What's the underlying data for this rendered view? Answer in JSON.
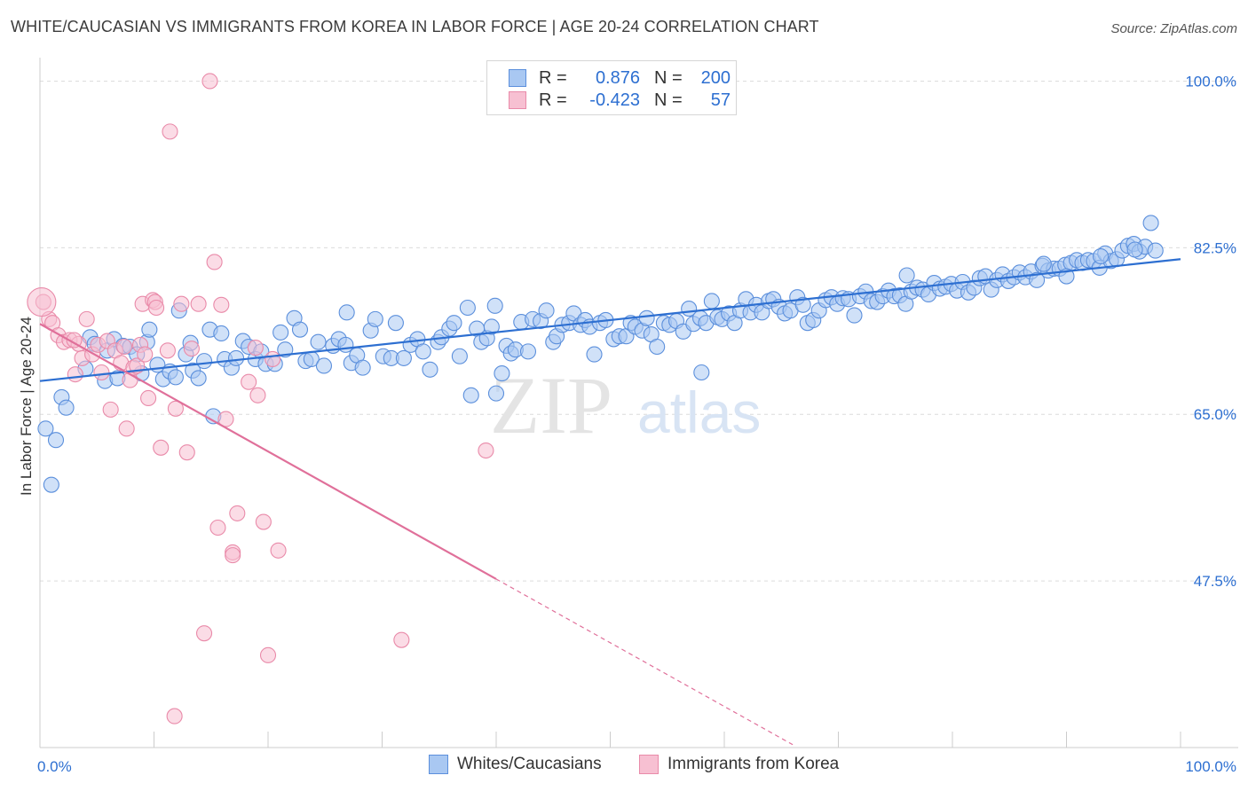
{
  "title": "WHITE/CAUCASIAN VS IMMIGRANTS FROM KOREA IN LABOR FORCE | AGE 20-24 CORRELATION CHART",
  "source": "Source: ZipAtlas.com",
  "watermark": {
    "zip": "ZIP",
    "atlas": "atlas"
  },
  "colors": {
    "blue_fill": "#a9c8f2",
    "blue_stroke": "#5b8fdc",
    "blue_line": "#2d6fd1",
    "pink_fill": "#f7c0d2",
    "pink_stroke": "#e98aa9",
    "pink_line": "#e0709a",
    "grid": "#dcdcdc",
    "axis_label": "#2d6fd1"
  },
  "legend": {
    "rows": [
      {
        "r_label": "R =",
        "r_value": "0.876",
        "n_label": "N =",
        "n_value": "200"
      },
      {
        "r_label": "R =",
        "r_value": "-0.423",
        "n_label": "N =",
        "n_value": "57"
      }
    ]
  },
  "chart_data": {
    "type": "scatter",
    "title": "WHITE/CAUCASIAN VS IMMIGRANTS FROM KOREA IN LABOR FORCE | AGE 20-24 CORRELATION CHART",
    "xlabel": "",
    "ylabel": "In Labor Force | Age 20-24",
    "xlim": [
      0,
      100
    ],
    "ylim": [
      30,
      102
    ],
    "x_tick_labels": [
      "0.0%",
      "100.0%"
    ],
    "y_ticks": [
      47.5,
      65.0,
      82.5,
      100.0
    ],
    "y_tick_labels": [
      "47.5%",
      "65.0%",
      "82.5%",
      "100.0%"
    ],
    "grid": true,
    "legend_position": "top-center",
    "series": [
      {
        "name": "Whites/Caucasians",
        "trend": {
          "x": [
            0,
            100
          ],
          "y": [
            68.5,
            81.3
          ]
        },
        "points": [
          [
            0.5,
            63.5
          ],
          [
            1.4,
            62.3
          ],
          [
            1.0,
            57.6
          ],
          [
            1.9,
            66.8
          ],
          [
            2.3,
            65.7
          ],
          [
            4.0,
            69.8
          ],
          [
            4.4,
            73.1
          ],
          [
            4.8,
            72.4
          ],
          [
            5.7,
            68.5
          ],
          [
            5.9,
            71.7
          ],
          [
            6.5,
            72.9
          ],
          [
            6.8,
            68.8
          ],
          [
            7.3,
            72.2
          ],
          [
            7.9,
            72.1
          ],
          [
            8.5,
            71.3
          ],
          [
            8.9,
            69.3
          ],
          [
            9.4,
            72.6
          ],
          [
            9.6,
            73.9
          ],
          [
            10.3,
            70.2
          ],
          [
            10.8,
            68.7
          ],
          [
            11.4,
            69.5
          ],
          [
            11.9,
            68.9
          ],
          [
            12.2,
            75.9
          ],
          [
            12.8,
            71.3
          ],
          [
            13.2,
            72.5
          ],
          [
            13.4,
            69.6
          ],
          [
            13.9,
            68.8
          ],
          [
            14.4,
            70.6
          ],
          [
            14.9,
            73.9
          ],
          [
            15.2,
            64.8
          ],
          [
            15.9,
            73.5
          ],
          [
            16.2,
            70.8
          ],
          [
            16.8,
            69.9
          ],
          [
            17.2,
            70.9
          ],
          [
            17.8,
            72.7
          ],
          [
            18.3,
            72.1
          ],
          [
            18.9,
            70.8
          ],
          [
            19.4,
            71.6
          ],
          [
            19.8,
            70.3
          ],
          [
            20.6,
            70.3
          ],
          [
            21.1,
            73.6
          ],
          [
            21.5,
            71.8
          ],
          [
            22.3,
            75.1
          ],
          [
            22.8,
            73.9
          ],
          [
            23.3,
            70.6
          ],
          [
            23.8,
            70.8
          ],
          [
            24.4,
            72.6
          ],
          [
            24.9,
            70.1
          ],
          [
            25.7,
            72.2
          ],
          [
            26.2,
            72.9
          ],
          [
            26.8,
            72.3
          ],
          [
            27.3,
            70.4
          ],
          [
            27.8,
            71.2
          ],
          [
            28.3,
            69.9
          ],
          [
            29.0,
            73.8
          ],
          [
            29.4,
            75.0
          ],
          [
            30.1,
            71.1
          ],
          [
            30.8,
            70.9
          ],
          [
            31.2,
            74.6
          ],
          [
            31.9,
            70.9
          ],
          [
            32.5,
            72.3
          ],
          [
            33.1,
            72.9
          ],
          [
            33.6,
            71.6
          ],
          [
            34.2,
            69.7
          ],
          [
            34.9,
            72.6
          ],
          [
            35.2,
            73.1
          ],
          [
            35.9,
            74.0
          ],
          [
            36.3,
            74.6
          ],
          [
            36.8,
            71.1
          ],
          [
            37.5,
            76.2
          ],
          [
            37.8,
            67.0
          ],
          [
            38.3,
            74.0
          ],
          [
            38.7,
            72.6
          ],
          [
            39.2,
            73.0
          ],
          [
            39.6,
            74.2
          ],
          [
            39.9,
            76.4
          ],
          [
            40.5,
            69.3
          ],
          [
            40.9,
            72.2
          ],
          [
            41.3,
            71.4
          ],
          [
            41.7,
            71.8
          ],
          [
            42.2,
            74.7
          ],
          [
            42.8,
            71.6
          ],
          [
            43.2,
            75.0
          ],
          [
            43.9,
            74.8
          ],
          [
            44.4,
            75.9
          ],
          [
            45.0,
            72.6
          ],
          [
            45.3,
            73.2
          ],
          [
            45.8,
            74.4
          ],
          [
            46.4,
            74.6
          ],
          [
            46.8,
            75.6
          ],
          [
            47.4,
            74.4
          ],
          [
            47.8,
            74.9
          ],
          [
            48.2,
            74.2
          ],
          [
            48.6,
            71.3
          ],
          [
            49.1,
            74.6
          ],
          [
            49.6,
            74.9
          ],
          [
            50.3,
            72.9
          ],
          [
            50.8,
            73.2
          ],
          [
            51.4,
            73.2
          ],
          [
            51.8,
            74.6
          ],
          [
            52.2,
            74.2
          ],
          [
            52.8,
            73.8
          ],
          [
            53.2,
            75.1
          ],
          [
            53.6,
            73.4
          ],
          [
            54.1,
            72.1
          ],
          [
            54.7,
            74.6
          ],
          [
            55.2,
            74.4
          ],
          [
            55.8,
            74.8
          ],
          [
            56.4,
            73.7
          ],
          [
            56.9,
            76.1
          ],
          [
            57.3,
            74.5
          ],
          [
            57.9,
            75.1
          ],
          [
            58.4,
            74.6
          ],
          [
            58.9,
            76.9
          ],
          [
            59.4,
            75.2
          ],
          [
            59.8,
            75.0
          ],
          [
            60.4,
            75.6
          ],
          [
            60.9,
            74.6
          ],
          [
            61.4,
            75.9
          ],
          [
            61.9,
            77.1
          ],
          [
            62.3,
            75.7
          ],
          [
            62.8,
            76.5
          ],
          [
            63.3,
            75.7
          ],
          [
            63.9,
            76.9
          ],
          [
            64.3,
            77.1
          ],
          [
            64.8,
            76.3
          ],
          [
            65.3,
            75.6
          ],
          [
            65.8,
            75.9
          ],
          [
            66.4,
            77.3
          ],
          [
            66.9,
            76.5
          ],
          [
            67.3,
            74.6
          ],
          [
            67.8,
            74.9
          ],
          [
            68.3,
            75.9
          ],
          [
            68.9,
            77.0
          ],
          [
            69.4,
            77.3
          ],
          [
            69.9,
            76.6
          ],
          [
            70.4,
            77.2
          ],
          [
            70.9,
            77.1
          ],
          [
            71.4,
            75.4
          ],
          [
            71.9,
            77.4
          ],
          [
            72.4,
            77.9
          ],
          [
            72.9,
            76.9
          ],
          [
            73.4,
            76.8
          ],
          [
            73.9,
            77.4
          ],
          [
            74.4,
            78.0
          ],
          [
            74.9,
            77.4
          ],
          [
            75.4,
            77.5
          ],
          [
            75.9,
            76.6
          ],
          [
            76.4,
            77.9
          ],
          [
            76.9,
            78.3
          ],
          [
            77.4,
            78.1
          ],
          [
            77.9,
            77.6
          ],
          [
            78.4,
            78.8
          ],
          [
            78.9,
            78.2
          ],
          [
            79.4,
            78.4
          ],
          [
            79.9,
            78.7
          ],
          [
            80.4,
            78.0
          ],
          [
            80.9,
            78.9
          ],
          [
            81.4,
            77.8
          ],
          [
            81.9,
            78.3
          ],
          [
            82.4,
            79.3
          ],
          [
            82.9,
            79.5
          ],
          [
            83.4,
            78.1
          ],
          [
            83.9,
            79.1
          ],
          [
            84.4,
            79.7
          ],
          [
            84.9,
            79.0
          ],
          [
            85.4,
            79.4
          ],
          [
            85.9,
            79.9
          ],
          [
            86.4,
            79.4
          ],
          [
            86.9,
            80.0
          ],
          [
            87.4,
            79.1
          ],
          [
            87.9,
            80.6
          ],
          [
            88.4,
            80.1
          ],
          [
            88.9,
            80.3
          ],
          [
            89.4,
            80.3
          ],
          [
            89.9,
            80.7
          ],
          [
            90.4,
            80.9
          ],
          [
            90.9,
            81.2
          ],
          [
            91.4,
            80.9
          ],
          [
            91.9,
            81.2
          ],
          [
            92.4,
            81.1
          ],
          [
            92.9,
            80.4
          ],
          [
            93.4,
            81.9
          ],
          [
            93.9,
            81.1
          ],
          [
            94.4,
            81.3
          ],
          [
            94.9,
            82.2
          ],
          [
            95.4,
            82.7
          ],
          [
            95.9,
            82.9
          ],
          [
            96.4,
            82.1
          ],
          [
            96.9,
            82.6
          ],
          [
            97.4,
            85.1
          ],
          [
            97.8,
            82.2
          ],
          [
            26.9,
            75.7
          ],
          [
            40.0,
            67.2
          ],
          [
            58.0,
            69.4
          ],
          [
            76.0,
            79.6
          ],
          [
            88.0,
            80.8
          ],
          [
            90.0,
            79.5
          ],
          [
            93.0,
            81.6
          ],
          [
            96.0,
            82.3
          ]
        ]
      },
      {
        "name": "Immigrants from Korea",
        "trend": {
          "x": [
            0,
            40
          ],
          "y": [
            74.5,
            47.7
          ]
        },
        "trend_extension": {
          "x": [
            40,
            66
          ],
          "y": [
            47.7,
            30.3
          ]
        },
        "points": [
          [
            0.3,
            76.8
          ],
          [
            0.8,
            75.0
          ],
          [
            1.1,
            74.6
          ],
          [
            1.6,
            73.3
          ],
          [
            2.1,
            72.6
          ],
          [
            2.6,
            72.8
          ],
          [
            3.1,
            69.2
          ],
          [
            3.4,
            72.4
          ],
          [
            3.7,
            70.9
          ],
          [
            4.1,
            75.0
          ],
          [
            4.6,
            71.3
          ],
          [
            5.1,
            72.3
          ],
          [
            5.4,
            69.4
          ],
          [
            5.9,
            72.7
          ],
          [
            6.2,
            65.5
          ],
          [
            6.6,
            71.7
          ],
          [
            7.1,
            70.4
          ],
          [
            7.4,
            72.1
          ],
          [
            7.6,
            63.5
          ],
          [
            7.9,
            68.6
          ],
          [
            8.2,
            69.9
          ],
          [
            8.5,
            70.1
          ],
          [
            8.8,
            72.3
          ],
          [
            9.0,
            76.6
          ],
          [
            9.2,
            71.3
          ],
          [
            9.5,
            66.7
          ],
          [
            9.9,
            77.0
          ],
          [
            10.1,
            76.8
          ],
          [
            10.2,
            76.2
          ],
          [
            10.6,
            61.5
          ],
          [
            11.2,
            71.7
          ],
          [
            11.4,
            94.7
          ],
          [
            11.9,
            65.6
          ],
          [
            12.4,
            76.6
          ],
          [
            12.9,
            61.0
          ],
          [
            13.3,
            71.9
          ],
          [
            13.9,
            76.6
          ],
          [
            14.4,
            42.0
          ],
          [
            14.9,
            100.0
          ],
          [
            15.3,
            81.0
          ],
          [
            15.6,
            53.1
          ],
          [
            15.9,
            76.5
          ],
          [
            16.3,
            64.5
          ],
          [
            16.9,
            50.5
          ],
          [
            16.9,
            50.2
          ],
          [
            17.3,
            54.6
          ],
          [
            18.3,
            68.4
          ],
          [
            18.9,
            72.0
          ],
          [
            19.1,
            67.0
          ],
          [
            19.6,
            53.7
          ],
          [
            20.0,
            39.7
          ],
          [
            20.4,
            70.8
          ],
          [
            20.9,
            50.7
          ],
          [
            11.8,
            33.3
          ],
          [
            31.7,
            41.3
          ],
          [
            39.1,
            61.2
          ],
          [
            3.0,
            72.8
          ]
        ]
      }
    ]
  }
}
